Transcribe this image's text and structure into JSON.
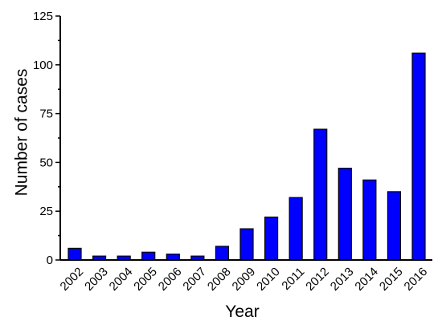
{
  "chart_data": {
    "type": "bar",
    "xlabel": "Year",
    "ylabel": "Number of cases",
    "categories": [
      "2002",
      "2003",
      "2004",
      "2005",
      "2006",
      "2007",
      "2008",
      "2009",
      "2010",
      "2011",
      "2012",
      "2013",
      "2014",
      "2015",
      "2016"
    ],
    "values": [
      6,
      2,
      2,
      4,
      3,
      2,
      7,
      16,
      22,
      32,
      67,
      47,
      41,
      35,
      106
    ],
    "ylim": [
      0,
      125
    ],
    "yticks": [
      0,
      25,
      50,
      75,
      100,
      125
    ],
    "yticks_labels": [
      "0",
      "25",
      "50",
      "75",
      "100",
      "125"
    ],
    "grid": false,
    "legend": "none",
    "bar_color": "#0000ff",
    "bar_edge_color": "#000000"
  }
}
